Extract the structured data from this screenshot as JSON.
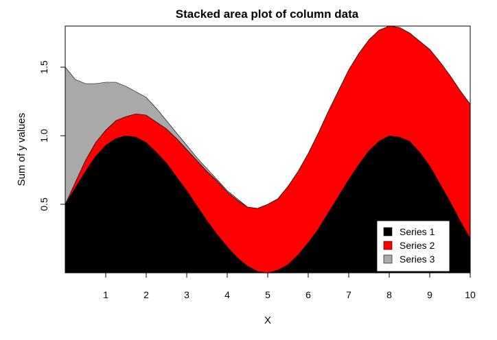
{
  "chart_data": {
    "type": "area",
    "stacked": true,
    "title": "Stacked area plot of column data",
    "xlabel": "X",
    "ylabel": "Sum of y values",
    "xlim": [
      0,
      10
    ],
    "ylim": [
      0,
      1.8
    ],
    "x_ticks": [
      "1",
      "2",
      "3",
      "4",
      "5",
      "6",
      "7",
      "8",
      "9",
      "10"
    ],
    "y_ticks": [
      "0.5",
      "1.0",
      "1.5"
    ],
    "grid": false,
    "legend_position": "bottom-right",
    "x": [
      0,
      0.25,
      0.5,
      0.75,
      1,
      1.25,
      1.5,
      1.75,
      2,
      2.25,
      2.5,
      2.75,
      3,
      3.25,
      3.5,
      3.75,
      4,
      4.25,
      4.5,
      4.75,
      5,
      5.25,
      5.5,
      5.75,
      6,
      6.25,
      6.5,
      6.75,
      7,
      7.25,
      7.5,
      7.75,
      8,
      8.25,
      8.5,
      8.75,
      9,
      9.25,
      9.5,
      9.75,
      10
    ],
    "series": [
      {
        "name": "Series 1",
        "color": "#000000",
        "values": [
          0.5,
          0.62,
          0.74,
          0.85,
          0.93,
          0.98,
          1.0,
          0.99,
          0.95,
          0.88,
          0.8,
          0.7,
          0.6,
          0.49,
          0.38,
          0.28,
          0.19,
          0.11,
          0.05,
          0.01,
          0.0,
          0.02,
          0.06,
          0.13,
          0.22,
          0.32,
          0.44,
          0.56,
          0.68,
          0.79,
          0.89,
          0.96,
          1.0,
          0.99,
          0.96,
          0.88,
          0.78,
          0.65,
          0.52,
          0.38,
          0.25
        ]
      },
      {
        "name": "Series 2",
        "color": "#ff0000",
        "values": [
          0.0,
          0.04,
          0.08,
          0.1,
          0.11,
          0.13,
          0.14,
          0.17,
          0.2,
          0.22,
          0.25,
          0.28,
          0.3,
          0.33,
          0.36,
          0.39,
          0.4,
          0.42,
          0.43,
          0.46,
          0.5,
          0.52,
          0.57,
          0.61,
          0.65,
          0.7,
          0.74,
          0.77,
          0.8,
          0.81,
          0.81,
          0.81,
          0.8,
          0.8,
          0.79,
          0.81,
          0.85,
          0.89,
          0.92,
          0.95,
          0.98
        ]
      },
      {
        "name": "Series 3",
        "color": "#a9a9a9",
        "values": [
          1.0,
          0.75,
          0.56,
          0.43,
          0.35,
          0.28,
          0.22,
          0.16,
          0.13,
          0.1,
          0.06,
          0.04,
          0.03,
          0.02,
          0.02,
          0.01,
          0.01,
          0.01,
          0.0,
          0.0,
          0.0,
          0.0,
          0.0,
          0.0,
          0.0,
          0.0,
          0.0,
          0.0,
          0.0,
          0.0,
          0.0,
          0.0,
          0.0,
          0.0,
          0.0,
          0.0,
          0.0,
          0.0,
          0.0,
          0.0,
          0.0
        ]
      }
    ]
  }
}
